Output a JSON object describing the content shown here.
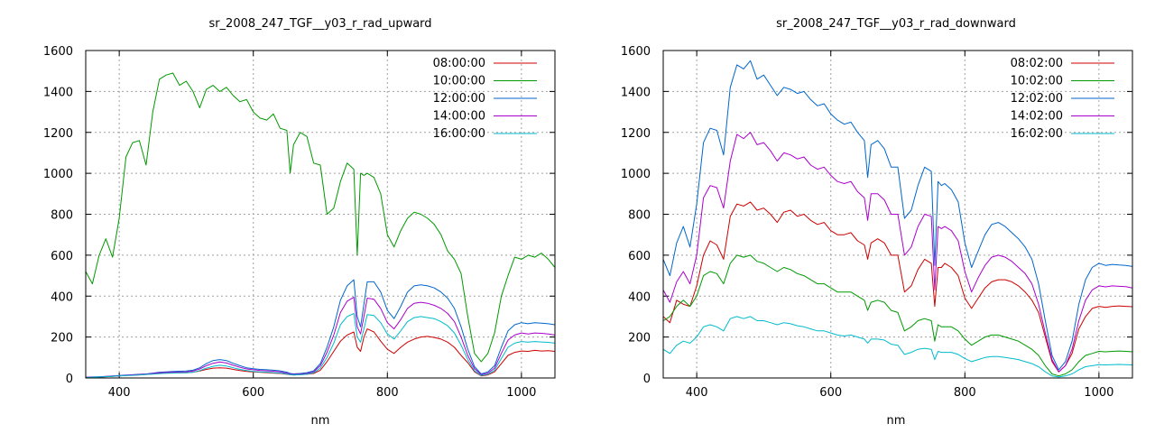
{
  "chart_data": [
    {
      "type": "line",
      "title": "sr_2008_247_TGF__y03_r_rad_upward",
      "xlabel": "nm",
      "ylabel": "",
      "xlim": [
        350,
        1050
      ],
      "ylim": [
        0,
        1600
      ],
      "xticks": [
        400,
        600,
        800,
        1000
      ],
      "yticks": [
        0,
        200,
        400,
        600,
        800,
        1000,
        1200,
        1400,
        1600
      ],
      "grid": true,
      "legend": "top-right",
      "x": [
        350,
        360,
        370,
        380,
        390,
        400,
        410,
        420,
        430,
        440,
        450,
        460,
        470,
        480,
        490,
        500,
        510,
        520,
        530,
        540,
        550,
        560,
        570,
        580,
        590,
        600,
        610,
        620,
        630,
        640,
        650,
        655,
        660,
        670,
        680,
        690,
        700,
        710,
        720,
        730,
        740,
        750,
        755,
        760,
        765,
        770,
        780,
        790,
        800,
        810,
        820,
        830,
        840,
        850,
        860,
        870,
        880,
        890,
        900,
        910,
        920,
        930,
        940,
        950,
        960,
        970,
        980,
        990,
        1000,
        1010,
        1020,
        1030,
        1040,
        1050
      ],
      "series": [
        {
          "name": "08:00:00",
          "color": "#cc0000",
          "values": [
            2,
            3,
            4,
            6,
            8,
            10,
            12,
            14,
            15,
            17,
            20,
            22,
            24,
            25,
            25,
            26,
            28,
            34,
            42,
            48,
            50,
            48,
            42,
            36,
            32,
            30,
            28,
            26,
            24,
            22,
            18,
            16,
            15,
            16,
            18,
            22,
            38,
            80,
            130,
            180,
            210,
            225,
            150,
            130,
            200,
            240,
            225,
            180,
            140,
            120,
            150,
            175,
            190,
            200,
            203,
            198,
            190,
            175,
            150,
            110,
            75,
            30,
            10,
            15,
            30,
            70,
            110,
            125,
            132,
            130,
            135,
            132,
            133,
            130
          ]
        },
        {
          "name": "10:00:00",
          "color": "#009900",
          "values": [
            520,
            460,
            600,
            680,
            590,
            780,
            1080,
            1150,
            1160,
            1040,
            1300,
            1460,
            1480,
            1490,
            1430,
            1450,
            1400,
            1320,
            1410,
            1430,
            1400,
            1420,
            1380,
            1350,
            1360,
            1300,
            1270,
            1260,
            1290,
            1220,
            1210,
            1000,
            1140,
            1200,
            1180,
            1050,
            1040,
            800,
            830,
            960,
            1050,
            1020,
            600,
            1000,
            990,
            1000,
            980,
            900,
            700,
            640,
            720,
            780,
            810,
            800,
            780,
            750,
            700,
            620,
            580,
            510,
            300,
            120,
            80,
            120,
            220,
            400,
            500,
            590,
            580,
            600,
            590,
            610,
            580,
            540
          ]
        },
        {
          "name": "12:00:00",
          "color": "#0066cc",
          "values": [
            4,
            5,
            6,
            8,
            10,
            12,
            14,
            16,
            18,
            20,
            24,
            28,
            30,
            32,
            33,
            34,
            38,
            50,
            70,
            85,
            90,
            85,
            72,
            60,
            50,
            45,
            42,
            40,
            38,
            35,
            28,
            22,
            20,
            22,
            26,
            35,
            70,
            150,
            250,
            380,
            450,
            480,
            300,
            250,
            360,
            470,
            470,
            420,
            330,
            290,
            350,
            420,
            450,
            455,
            450,
            440,
            420,
            390,
            340,
            250,
            140,
            55,
            20,
            30,
            60,
            150,
            230,
            260,
            270,
            265,
            270,
            268,
            265,
            260
          ]
        },
        {
          "name": "14:00:00",
          "color": "#aa00cc",
          "values": [
            3,
            4,
            5,
            7,
            9,
            11,
            13,
            15,
            17,
            19,
            22,
            25,
            27,
            28,
            29,
            30,
            34,
            44,
            60,
            72,
            78,
            73,
            62,
            52,
            44,
            40,
            37,
            35,
            33,
            30,
            24,
            19,
            17,
            19,
            22,
            30,
            60,
            125,
            210,
            320,
            375,
            395,
            250,
            215,
            300,
            390,
            385,
            340,
            270,
            240,
            285,
            340,
            365,
            370,
            365,
            355,
            340,
            315,
            275,
            200,
            110,
            45,
            16,
            24,
            48,
            120,
            185,
            210,
            220,
            215,
            220,
            218,
            215,
            210
          ]
        },
        {
          "name": "16:00:00",
          "color": "#00bbcc",
          "values": [
            2,
            3,
            5,
            6,
            8,
            10,
            12,
            13,
            15,
            17,
            19,
            21,
            23,
            24,
            25,
            25,
            28,
            36,
            48,
            57,
            62,
            58,
            50,
            42,
            36,
            32,
            30,
            28,
            26,
            24,
            20,
            16,
            14,
            16,
            18,
            25,
            48,
            100,
            170,
            260,
            300,
            315,
            200,
            175,
            240,
            310,
            305,
            270,
            215,
            190,
            230,
            275,
            295,
            300,
            295,
            290,
            275,
            255,
            220,
            160,
            90,
            35,
            12,
            18,
            38,
            95,
            150,
            170,
            178,
            175,
            178,
            176,
            174,
            170
          ]
        }
      ]
    },
    {
      "type": "line",
      "title": "sr_2008_247_TGF__y03_r_rad_downward",
      "xlabel": "nm",
      "ylabel": "",
      "xlim": [
        350,
        1050
      ],
      "ylim": [
        0,
        1600
      ],
      "xticks": [
        400,
        600,
        800,
        1000
      ],
      "yticks": [
        0,
        200,
        400,
        600,
        800,
        1000,
        1200,
        1400,
        1600
      ],
      "grid": true,
      "legend": "top-right",
      "x": [
        350,
        360,
        370,
        380,
        390,
        400,
        410,
        420,
        430,
        440,
        450,
        460,
        470,
        480,
        490,
        500,
        510,
        520,
        530,
        540,
        550,
        560,
        570,
        580,
        590,
        600,
        610,
        620,
        630,
        640,
        650,
        655,
        660,
        670,
        680,
        690,
        700,
        710,
        720,
        730,
        740,
        750,
        755,
        760,
        765,
        770,
        780,
        790,
        800,
        810,
        820,
        830,
        840,
        850,
        860,
        870,
        880,
        890,
        900,
        910,
        920,
        930,
        940,
        950,
        960,
        970,
        980,
        990,
        1000,
        1010,
        1020,
        1030,
        1040,
        1050
      ],
      "series": [
        {
          "name": "08:02:00",
          "color": "#cc0000",
          "values": [
            300,
            270,
            380,
            360,
            350,
            450,
            600,
            670,
            650,
            580,
            790,
            850,
            840,
            860,
            820,
            830,
            800,
            760,
            810,
            820,
            790,
            800,
            770,
            750,
            760,
            720,
            700,
            700,
            710,
            670,
            650,
            580,
            660,
            680,
            660,
            600,
            600,
            420,
            450,
            530,
            580,
            560,
            350,
            540,
            540,
            560,
            540,
            500,
            390,
            340,
            390,
            440,
            470,
            480,
            480,
            470,
            450,
            420,
            380,
            320,
            200,
            80,
            30,
            60,
            120,
            240,
            300,
            340,
            350,
            345,
            350,
            352,
            350,
            348
          ]
        },
        {
          "name": "10:02:00",
          "color": "#009900",
          "values": [
            280,
            300,
            350,
            380,
            350,
            400,
            500,
            520,
            510,
            460,
            560,
            600,
            590,
            600,
            570,
            560,
            540,
            520,
            540,
            530,
            510,
            500,
            480,
            460,
            460,
            440,
            420,
            420,
            420,
            400,
            380,
            330,
            370,
            380,
            370,
            330,
            320,
            230,
            250,
            280,
            290,
            280,
            180,
            260,
            250,
            250,
            250,
            230,
            190,
            160,
            180,
            200,
            210,
            210,
            200,
            190,
            180,
            160,
            140,
            110,
            60,
            20,
            10,
            20,
            40,
            80,
            110,
            120,
            130,
            128,
            130,
            132,
            130,
            128
          ]
        },
        {
          "name": "12:02:00",
          "color": "#0066cc",
          "values": [
            580,
            500,
            660,
            740,
            640,
            850,
            1150,
            1220,
            1210,
            1090,
            1420,
            1530,
            1510,
            1550,
            1460,
            1480,
            1430,
            1380,
            1420,
            1410,
            1390,
            1400,
            1360,
            1330,
            1340,
            1290,
            1260,
            1240,
            1250,
            1200,
            1160,
            980,
            1140,
            1160,
            1120,
            1030,
            1030,
            780,
            820,
            940,
            1030,
            1010,
            550,
            960,
            940,
            950,
            920,
            860,
            660,
            540,
            620,
            700,
            750,
            760,
            740,
            710,
            680,
            640,
            580,
            460,
            280,
            110,
            40,
            80,
            180,
            360,
            480,
            540,
            560,
            550,
            555,
            552,
            550,
            545
          ]
        },
        {
          "name": "14:02:00",
          "color": "#aa00cc",
          "values": [
            430,
            370,
            470,
            520,
            460,
            600,
            880,
            940,
            930,
            830,
            1060,
            1190,
            1170,
            1200,
            1140,
            1150,
            1110,
            1060,
            1100,
            1090,
            1070,
            1080,
            1040,
            1020,
            1030,
            990,
            960,
            950,
            960,
            910,
            880,
            770,
            900,
            900,
            870,
            800,
            800,
            600,
            640,
            740,
            800,
            790,
            430,
            740,
            730,
            740,
            720,
            670,
            520,
            420,
            490,
            550,
            590,
            600,
            590,
            570,
            540,
            510,
            460,
            360,
            220,
            90,
            30,
            60,
            140,
            280,
            380,
            430,
            450,
            445,
            450,
            448,
            446,
            440
          ]
        },
        {
          "name": "16:02:00",
          "color": "#00bbcc",
          "values": [
            140,
            120,
            160,
            180,
            170,
            200,
            250,
            260,
            250,
            230,
            290,
            300,
            290,
            300,
            280,
            280,
            270,
            260,
            270,
            265,
            255,
            250,
            240,
            230,
            230,
            220,
            210,
            205,
            210,
            200,
            190,
            170,
            190,
            190,
            185,
            165,
            160,
            115,
            125,
            140,
            145,
            140,
            90,
            130,
            125,
            125,
            125,
            115,
            95,
            80,
            90,
            100,
            105,
            105,
            100,
            95,
            90,
            80,
            70,
            55,
            30,
            10,
            5,
            10,
            20,
            40,
            55,
            60,
            65,
            64,
            65,
            66,
            65,
            64
          ]
        }
      ]
    }
  ]
}
